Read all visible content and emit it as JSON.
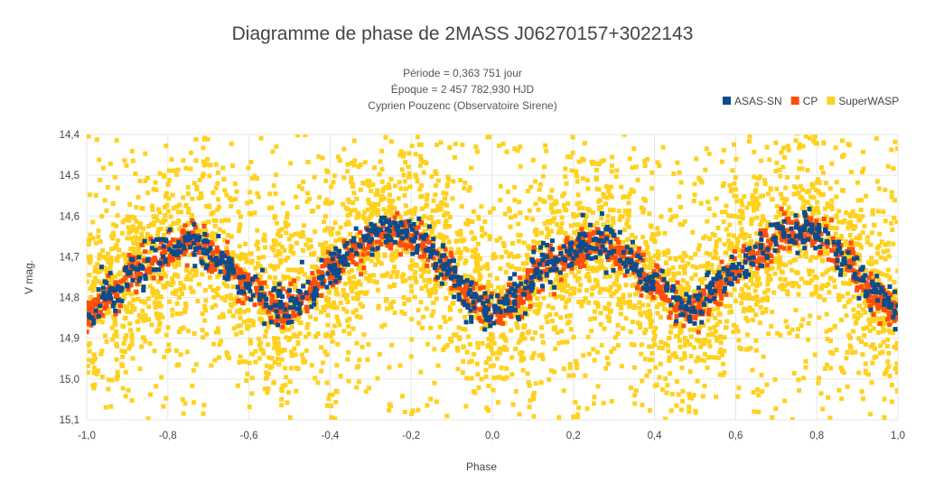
{
  "chart_data": {
    "type": "scatter",
    "title": "Diagramme de phase de 2MASS J06270157+3022143",
    "subtitle_lines": [
      "Période = 0,363 751 jour",
      "Époque = 2 457 782,930 HJD",
      "Cyprien Pouzenc (Observatoire Sirene)"
    ],
    "xlabel": "Phase",
    "ylabel": "V mag.",
    "xlim": [
      -1.0,
      1.0
    ],
    "ylim": [
      15.1,
      14.4
    ],
    "y_reversed": true,
    "grid": true,
    "legend_position": "top-right",
    "x_ticks": [
      {
        "value": -1.0,
        "label": "-1,0"
      },
      {
        "value": -0.8,
        "label": "-0,8"
      },
      {
        "value": -0.6,
        "label": "-0,6"
      },
      {
        "value": -0.4,
        "label": "-0,4"
      },
      {
        "value": -0.2,
        "label": "-0,2"
      },
      {
        "value": 0.0,
        "label": "0,0"
      },
      {
        "value": 0.2,
        "label": "0,2"
      },
      {
        "value": 0.4,
        "label": "0,4"
      },
      {
        "value": 0.6,
        "label": "0,6"
      },
      {
        "value": 0.8,
        "label": "0,8"
      },
      {
        "value": 1.0,
        "label": "1,0"
      }
    ],
    "y_ticks": [
      {
        "value": 14.4,
        "label": "14,4"
      },
      {
        "value": 14.5,
        "label": "14,5"
      },
      {
        "value": 14.6,
        "label": "14,6"
      },
      {
        "value": 14.7,
        "label": "14,7"
      },
      {
        "value": 14.8,
        "label": "14,8"
      },
      {
        "value": 14.9,
        "label": "14,9"
      },
      {
        "value": 15.0,
        "label": "15,0"
      },
      {
        "value": 15.1,
        "label": "15,1"
      }
    ],
    "light_curve": {
      "x": [
        0.0,
        0.06,
        0.12,
        0.2,
        0.26,
        0.32,
        0.4,
        0.46,
        0.5,
        0.54,
        0.6,
        0.66,
        0.72,
        0.78,
        0.82,
        0.88,
        0.94,
        1.0
      ],
      "mag": [
        14.84,
        14.8,
        14.73,
        14.69,
        14.66,
        14.7,
        14.77,
        14.82,
        14.83,
        14.79,
        14.73,
        14.69,
        14.64,
        14.63,
        14.66,
        14.72,
        14.79,
        14.84
      ]
    },
    "series": [
      {
        "name": "SuperWASP",
        "color": "#FFD11F",
        "count": 4200,
        "scatter": 0.11
      },
      {
        "name": "CP",
        "color": "#FF4E0A",
        "count": 1400,
        "scatter": 0.022
      },
      {
        "name": "ASAS-SN",
        "color": "#0B4C8C",
        "count": 900,
        "scatter": 0.024
      }
    ],
    "legend": [
      {
        "name": "ASAS-SN",
        "color": "#0B4C8C"
      },
      {
        "name": "CP",
        "color": "#FF4E0A"
      },
      {
        "name": "SuperWASP",
        "color": "#FFD11F"
      }
    ]
  }
}
